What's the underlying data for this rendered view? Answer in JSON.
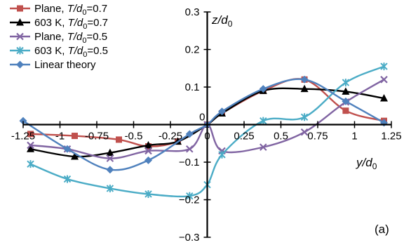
{
  "chart_data": {
    "type": "line",
    "title": "",
    "xlabel": {
      "main": "y/d",
      "sub": "0"
    },
    "ylabel": {
      "main": "z/d",
      "sub": "0"
    },
    "xlim": [
      -1.25,
      1.25
    ],
    "ylim": [
      -0.3,
      0.3
    ],
    "xticks": [
      -1.25,
      -1,
      -0.75,
      -0.5,
      -0.25,
      0,
      0.25,
      0.5,
      0.75,
      1,
      1.25
    ],
    "yticks": [
      -0.3,
      -0.2,
      -0.1,
      0,
      0.1,
      0.2,
      0.3
    ],
    "xtick_labels": [
      "-1.25",
      "-1",
      "-0.75",
      "-0.5",
      "-0.25",
      "0",
      "0.25",
      "0.5",
      "0.75",
      "1",
      "1.25"
    ],
    "ytick_labels": [
      "−0.3",
      "−0.2",
      "−0.1",
      "0",
      "0.1",
      "0.2",
      "0.3"
    ],
    "grid": false,
    "legend_position": "top-left",
    "panel_label": "(a)",
    "series": [
      {
        "name": "Plane, T/d0=0.7",
        "legend": {
          "pre": "Plane, ",
          "T": "T",
          "d": "/d",
          "sub": "0",
          "post": "=0.7"
        },
        "color": "#c0504d",
        "marker": "square",
        "x": [
          -1.2,
          -0.9,
          -0.6,
          -0.4,
          -0.2,
          0,
          0.1,
          0.38,
          0.66,
          0.94,
          1.2
        ],
        "y": [
          -0.025,
          -0.03,
          -0.04,
          -0.058,
          -0.045,
          0,
          0.03,
          0.09,
          0.12,
          0.037,
          0.01
        ]
      },
      {
        "name": "603 K, T/d0=0.7",
        "legend": {
          "pre": "603 K, ",
          "T": "T",
          "d": "/d",
          "sub": "0",
          "post": "=0.7"
        },
        "color": "#000000",
        "marker": "triangle",
        "x": [
          -1.2,
          -0.9,
          -0.66,
          -0.4,
          -0.2,
          0,
          0.1,
          0.38,
          0.66,
          0.94,
          1.2
        ],
        "y": [
          -0.065,
          -0.085,
          -0.075,
          -0.055,
          -0.045,
          0,
          0.03,
          0.09,
          0.095,
          0.088,
          0.07
        ]
      },
      {
        "name": "Plane, T/d0=0.5",
        "legend": {
          "pre": "Plane, ",
          "T": "T",
          "d": "/d",
          "sub": "0",
          "post": "=0.5"
        },
        "color": "#8064a2",
        "marker": "x",
        "x": [
          -1.2,
          -0.95,
          -0.66,
          -0.4,
          -0.12,
          0,
          0.1,
          0.38,
          0.66,
          0.94,
          1.2
        ],
        "y": [
          -0.055,
          -0.065,
          -0.09,
          -0.07,
          -0.065,
          0,
          -0.07,
          -0.06,
          -0.02,
          0.06,
          0.12
        ]
      },
      {
        "name": "603 K, T/d0=0.5",
        "legend": {
          "pre": "603 K, ",
          "T": "T",
          "d": "/d",
          "sub": "0",
          "post": "=0.5"
        },
        "color": "#4bacc6",
        "marker": "star",
        "x": [
          -1.2,
          -0.95,
          -0.66,
          -0.4,
          -0.12,
          0,
          0.1,
          0.38,
          0.66,
          0.94,
          1.2
        ],
        "y": [
          -0.105,
          -0.145,
          -0.17,
          -0.185,
          -0.19,
          -0.16,
          -0.08,
          0.01,
          0.02,
          0.112,
          0.155
        ]
      },
      {
        "name": "Linear theory",
        "legend": {
          "pre": "Linear theory",
          "T": "",
          "d": "",
          "sub": "",
          "post": ""
        },
        "color": "#4f81bd",
        "marker": "diamond",
        "x": [
          -1.25,
          -0.95,
          -0.66,
          -0.4,
          -0.12,
          0,
          0.1,
          0.38,
          0.66,
          0.94,
          1.2
        ],
        "y": [
          0.01,
          -0.065,
          -0.12,
          -0.095,
          -0.025,
          0,
          0.035,
          0.095,
          0.12,
          0.062,
          0.005
        ]
      }
    ]
  }
}
